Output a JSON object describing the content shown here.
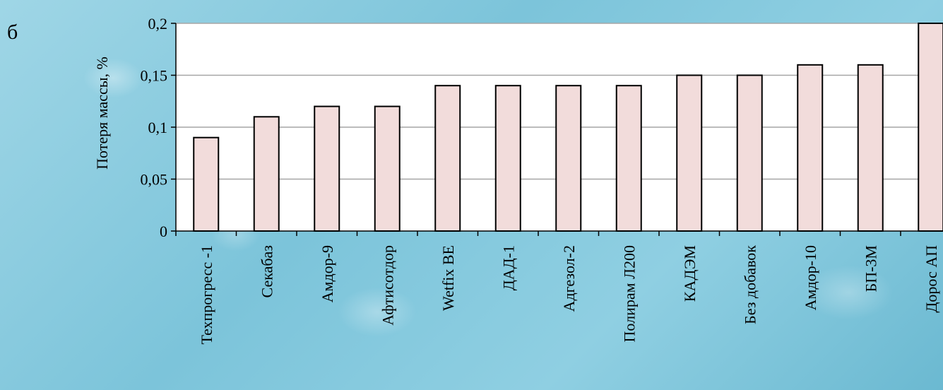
{
  "panel_letter": "б",
  "chart_data": {
    "type": "bar",
    "ylabel": "Потеря массы, %",
    "ylim": [
      0,
      0.2
    ],
    "yticks": [
      "0",
      "0,05",
      "0,1",
      "0,15",
      "0,2"
    ],
    "categories": [
      "Техпрогресс -1",
      "Секабаз",
      "Амдор-9",
      "Афтисотдор",
      "Wetfix BE",
      "ДАД-1",
      "Адгезол-2",
      "Полирам Л200",
      "КАДЭМ",
      "Без добавок",
      "Амдор-10",
      "БП-3М",
      "Дорос АП"
    ],
    "values": [
      0.09,
      0.11,
      0.12,
      0.12,
      0.14,
      0.14,
      0.14,
      0.14,
      0.15,
      0.15,
      0.16,
      0.16,
      0.2
    ],
    "bar_color": "#f2dcdb",
    "bar_stroke": "#000000",
    "plot_background": "#ffffff",
    "grid": true,
    "grid_color": "#a6a6a6"
  }
}
